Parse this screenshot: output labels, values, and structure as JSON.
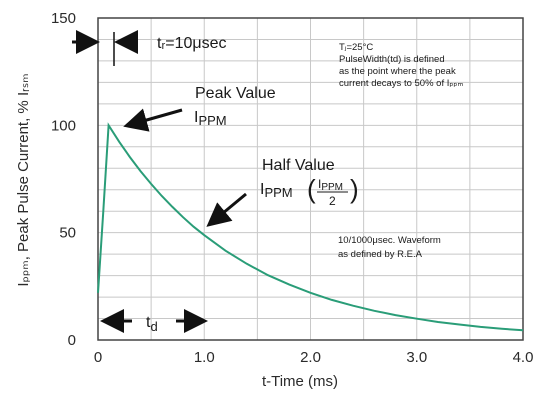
{
  "chart_data": {
    "type": "line",
    "title": "",
    "xlabel": "t-Time (ms)",
    "ylabel": "Iₚₚₘ, Peak Pulse Current, % Iᵣₛₘ",
    "xlim": [
      0,
      4.0
    ],
    "ylim": [
      0,
      150
    ],
    "x_ticks": [
      "0",
      "1.0",
      "2.0",
      "3.0",
      "4.0"
    ],
    "y_ticks": [
      "0",
      "50",
      "100",
      "150"
    ],
    "grid": true,
    "legend": "none",
    "series_color": "#2a9d78",
    "series": [
      {
        "x": [
          0,
          0.05,
          0.1,
          0.2,
          0.3,
          0.4,
          0.5,
          0.6,
          0.7,
          0.8,
          0.9,
          1.0,
          1.2,
          1.4,
          1.6,
          1.8,
          2.0,
          2.2,
          2.4,
          2.6,
          2.8,
          3.0,
          3.2,
          3.4,
          3.6,
          3.8,
          4.0
        ],
        "y": [
          22,
          60,
          100,
          92.3,
          85.2,
          78.7,
          72.7,
          67.1,
          62.0,
          57.2,
          52.8,
          48.8,
          41.6,
          35.5,
          30.2,
          25.8,
          22.0,
          18.7,
          16.0,
          13.6,
          11.6,
          9.9,
          8.4,
          7.2,
          6.1,
          5.2,
          4.5
        ]
      }
    ],
    "annotations": {
      "tr": "tᵣ=10μsec",
      "peak_line1": "Peak Value",
      "peak_line2": "I",
      "peak_sub": "PPM",
      "half_line1": "Half Value",
      "half_I": "I",
      "half_sub": "PPM",
      "half_frac_num_I": "I",
      "half_frac_num_sub": "PPM",
      "half_frac_den": "2",
      "note_tj": "Tⱼ=25°C",
      "note_line1": "PulseWidth(td) is defined",
      "note_line2": "as the point where the peak",
      "note_line3": "current decays to 50% of Iₚₚₘ",
      "waveform_line1": "10/1000μsec. Waveform",
      "waveform_line2": "as defined by R.E.A",
      "td": "t",
      "td_sub": "d"
    }
  }
}
